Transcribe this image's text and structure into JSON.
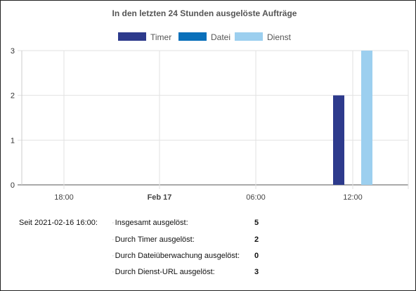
{
  "chart_data": {
    "type": "bar",
    "title": "In den letzten 24 Stunden ausgelöste Aufträge",
    "series": [
      {
        "name": "Timer",
        "color": "#2d3a8c",
        "x": [
          "12:00"
        ],
        "values": [
          2
        ]
      },
      {
        "name": "Datei",
        "color": "#0a70ba",
        "x": [],
        "values": []
      },
      {
        "name": "Dienst",
        "color": "#9ccfef",
        "x": [
          "12:00"
        ],
        "values": [
          3
        ]
      }
    ],
    "x_tick_labels": [
      {
        "label": "18:00",
        "bold": false
      },
      {
        "label": "Feb 17",
        "bold": true
      },
      {
        "label": "06:00",
        "bold": false
      },
      {
        "label": "12:00",
        "bold": false
      }
    ],
    "y_ticks": [
      0,
      1,
      2,
      3
    ],
    "ylim": [
      0,
      3
    ],
    "grid": true,
    "legend_position": "top-center"
  },
  "stats": {
    "since_label": "Seit  2021-02-16 16:00:",
    "rows": [
      {
        "label": "Insgesamt ausgelöst:",
        "value": "5"
      },
      {
        "label": "Durch Timer ausgelöst:",
        "value": "2"
      },
      {
        "label": "Durch Dateiüberwachung ausgelöst:",
        "value": "0"
      },
      {
        "label": "Durch Dienst-URL ausgelöst:",
        "value": "3"
      }
    ]
  }
}
